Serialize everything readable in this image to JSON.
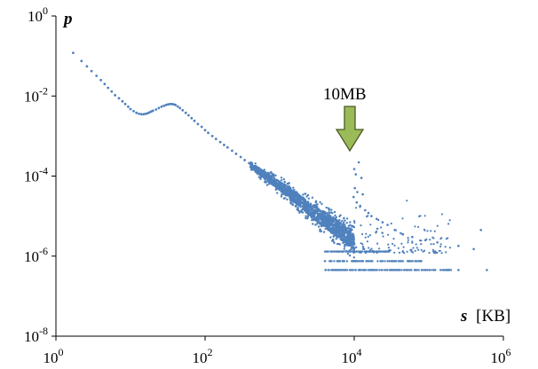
{
  "chart_data": {
    "type": "scatter",
    "title": "",
    "xlabel": {
      "symbol": "s",
      "unit": "[KB]"
    },
    "ylabel": {
      "symbol": "p"
    },
    "xscale": "log",
    "yscale": "log",
    "xlim": [
      1,
      1000000
    ],
    "ylim": [
      1e-08,
      1
    ],
    "x_ticks": [
      {
        "base": "10",
        "exp": "0",
        "value": 1
      },
      {
        "base": "10",
        "exp": "2",
        "value": 100
      },
      {
        "base": "10",
        "exp": "4",
        "value": 10000
      },
      {
        "base": "10",
        "exp": "6",
        "value": 1000000
      }
    ],
    "y_ticks": [
      {
        "base": "10",
        "exp": "0",
        "value": 1
      },
      {
        "base": "10",
        "exp": "-2",
        "value": 0.01
      },
      {
        "base": "10",
        "exp": "-4",
        "value": 0.0001
      },
      {
        "base": "10",
        "exp": "-6",
        "value": 1e-06
      },
      {
        "base": "10",
        "exp": "-8",
        "value": 1e-08
      }
    ],
    "grid": false,
    "legend": "none",
    "marker_color": "#4F81BD",
    "annotation": {
      "text": "10MB",
      "x": 10000,
      "arrow_color": "#9BBB59",
      "arrow_stroke": "#4A5A24"
    },
    "series": [
      {
        "points": [
          [
            1.7,
            0.12
          ],
          [
            2.2,
            0.075
          ],
          [
            2.6,
            0.055
          ],
          [
            3,
            0.042
          ],
          [
            3.5,
            0.032
          ],
          [
            4,
            0.025
          ],
          [
            4.5,
            0.02
          ],
          [
            5,
            0.016
          ],
          [
            5.6,
            0.013
          ],
          [
            6.2,
            0.0105
          ],
          [
            7,
            0.0088
          ],
          [
            7.8,
            0.0074
          ],
          [
            8.5,
            0.0063
          ],
          [
            9.3,
            0.0054
          ],
          [
            10,
            0.0047
          ],
          [
            11,
            0.0042
          ],
          [
            12,
            0.0038
          ],
          [
            13,
            0.0036
          ],
          [
            14,
            0.0035
          ],
          [
            15,
            0.0035
          ],
          [
            16,
            0.0036
          ],
          [
            17,
            0.0037
          ],
          [
            18,
            0.0039
          ],
          [
            19,
            0.0041
          ],
          [
            20,
            0.0043
          ],
          [
            22,
            0.0046
          ],
          [
            24,
            0.005
          ],
          [
            26,
            0.0054
          ],
          [
            28,
            0.0057
          ],
          [
            30,
            0.006
          ],
          [
            32,
            0.0062
          ],
          [
            34,
            0.0063
          ],
          [
            36,
            0.0063
          ],
          [
            38,
            0.0062
          ],
          [
            40,
            0.006
          ],
          [
            43,
            0.0055
          ],
          [
            46,
            0.005
          ],
          [
            50,
            0.0044
          ],
          [
            55,
            0.0038
          ],
          [
            60,
            0.0033
          ],
          [
            66,
            0.0028
          ],
          [
            72,
            0.0024
          ],
          [
            80,
            0.002
          ],
          [
            90,
            0.0017
          ],
          [
            100,
            0.0014
          ],
          [
            110,
            0.0012
          ],
          [
            125,
            0.001
          ],
          [
            140,
            0.00085
          ],
          [
            160,
            0.00071
          ],
          [
            180,
            0.0006
          ],
          [
            200,
            0.00052
          ],
          [
            230,
            0.00043
          ],
          [
            260,
            0.00036
          ],
          [
            300,
            0.0003
          ],
          [
            340,
            0.00025
          ],
          [
            390,
            0.00021
          ],
          [
            440,
            0.00017
          ],
          [
            500,
            0.00014
          ],
          [
            570,
            0.00012
          ],
          [
            650,
            0.0001
          ],
          [
            740,
            8.5e-05
          ],
          [
            840,
            7e-05
          ],
          [
            950,
            6e-05
          ],
          [
            1100,
            5e-05
          ],
          [
            1250,
            4.2e-05
          ],
          [
            1400,
            3.5e-05
          ],
          [
            1600,
            3e-05
          ],
          [
            1800,
            2.5e-05
          ],
          [
            2000,
            2.1e-05
          ],
          [
            2300,
            1.7e-05
          ],
          [
            2600,
            1.4e-05
          ],
          [
            3000,
            1.2e-05
          ],
          [
            3400,
            1e-05
          ],
          [
            3900,
            8.5e-06
          ],
          [
            4400,
            7.2e-06
          ],
          [
            5000,
            6e-06
          ],
          [
            5700,
            5e-06
          ],
          [
            6500,
            4.3e-06
          ],
          [
            7400,
            3.7e-06
          ],
          [
            8400,
            3.1e-06
          ],
          [
            9500,
            2.7e-06
          ],
          [
            10000,
            2e-06
          ]
        ],
        "spread_band": {
          "x_from": 400,
          "x_to": 10000,
          "factor": 3,
          "count": 1600
        },
        "outliers": [
          [
            10000,
            0.00015
          ],
          [
            10500,
            0.00011
          ],
          [
            11500,
            0.00022
          ],
          [
            12500,
            9e-05
          ],
          [
            10200,
            5e-05
          ],
          [
            11000,
            4e-05
          ],
          [
            13000,
            3.5e-05
          ],
          [
            9800,
            3e-05
          ],
          [
            10800,
            2.2e-05
          ],
          [
            12000,
            1.8e-05
          ],
          [
            14000,
            1.4e-05
          ],
          [
            15500,
            1.2e-05
          ],
          [
            17000,
            1e-05
          ],
          [
            20000,
            8.5e-06
          ],
          [
            24000,
            7e-06
          ],
          [
            28000,
            6e-06
          ],
          [
            35000,
            4.5e-06
          ],
          [
            45000,
            3.5e-06
          ],
          [
            60000,
            3e-06
          ],
          [
            90000,
            2.5e-06
          ],
          [
            130000,
            2.2e-06
          ],
          [
            250000,
            1.8e-06
          ],
          [
            400000,
            1.5e-06
          ],
          [
            500000,
            4.5e-06
          ]
        ],
        "horizontal_bands": [
          {
            "p": 1.3e-06,
            "x_from": 4000,
            "x_to": 30000,
            "count": 90
          },
          {
            "p": 7.5e-07,
            "x_from": 4000,
            "x_to": 80000,
            "count": 110
          },
          {
            "p": 4.5e-07,
            "x_from": 4000,
            "x_to": 200000,
            "count": 150
          }
        ],
        "band_end_points": [
          [
            250000,
            4.5e-07
          ],
          [
            600000,
            4.5e-07
          ]
        ]
      }
    ]
  }
}
